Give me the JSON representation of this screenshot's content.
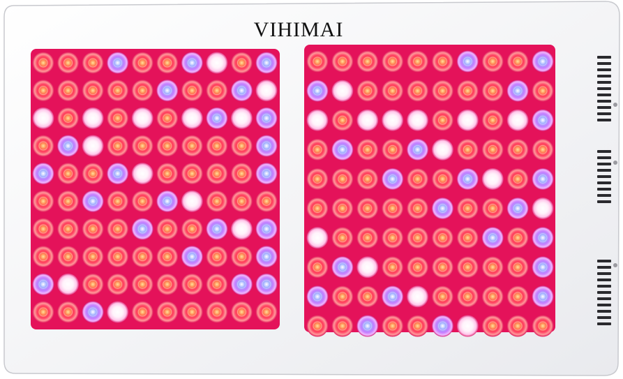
{
  "brand": "VIHIMAI"
}
